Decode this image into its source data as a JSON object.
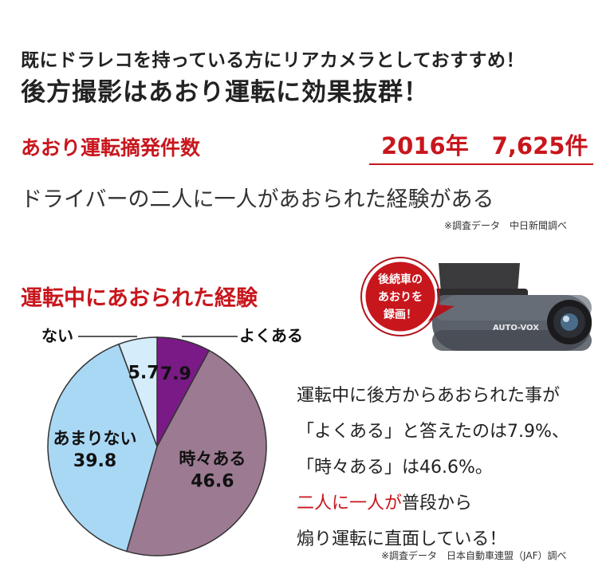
{
  "headline": {
    "line1": "既にドラレコを持っている方にリアカメラとしておすすめ！",
    "line2": "後方撮影はあおり運転に効果抜群！"
  },
  "stat": {
    "label": "あおり運転摘発件数",
    "value": "2016年　7,625件",
    "subtitle": "ドライバーの二人に一人があおられた経験がある",
    "source_note": "※調査データ　中日新聞調べ"
  },
  "camera": {
    "bubble_lines": [
      "後続車の",
      "あおりを",
      "録画！"
    ],
    "brand": "AUTO-VOX",
    "icon": "dashcam-icon"
  },
  "description": {
    "line1": "運転中に後方からあおられた事が",
    "line2": "「よくある」と答えたのは7.9%、",
    "line3": "「時々ある」は46.6%。",
    "line4_red": "二人に一人が",
    "line4_rest": "普段から",
    "line5": "煽り運転に直面している！",
    "source_note": "※調査データ　日本自動車連盟（JAF）調べ"
  },
  "colors": {
    "accent_red": "#c8161d",
    "often": "#7a1a86",
    "sometimes": "#9c7b92",
    "rarely": "#a9d8f5",
    "never": "#d5ecfa"
  },
  "chart_data": {
    "type": "pie",
    "title": "運転中にあおられた経験",
    "slices": [
      {
        "label": "よくある",
        "value": 7.9
      },
      {
        "label": "時々ある",
        "value": 46.6
      },
      {
        "label": "あまりない",
        "value": 39.8
      },
      {
        "label": "ない",
        "value": 5.7
      }
    ],
    "start": "12 o'clock",
    "direction": "clockwise",
    "legend": "none"
  }
}
